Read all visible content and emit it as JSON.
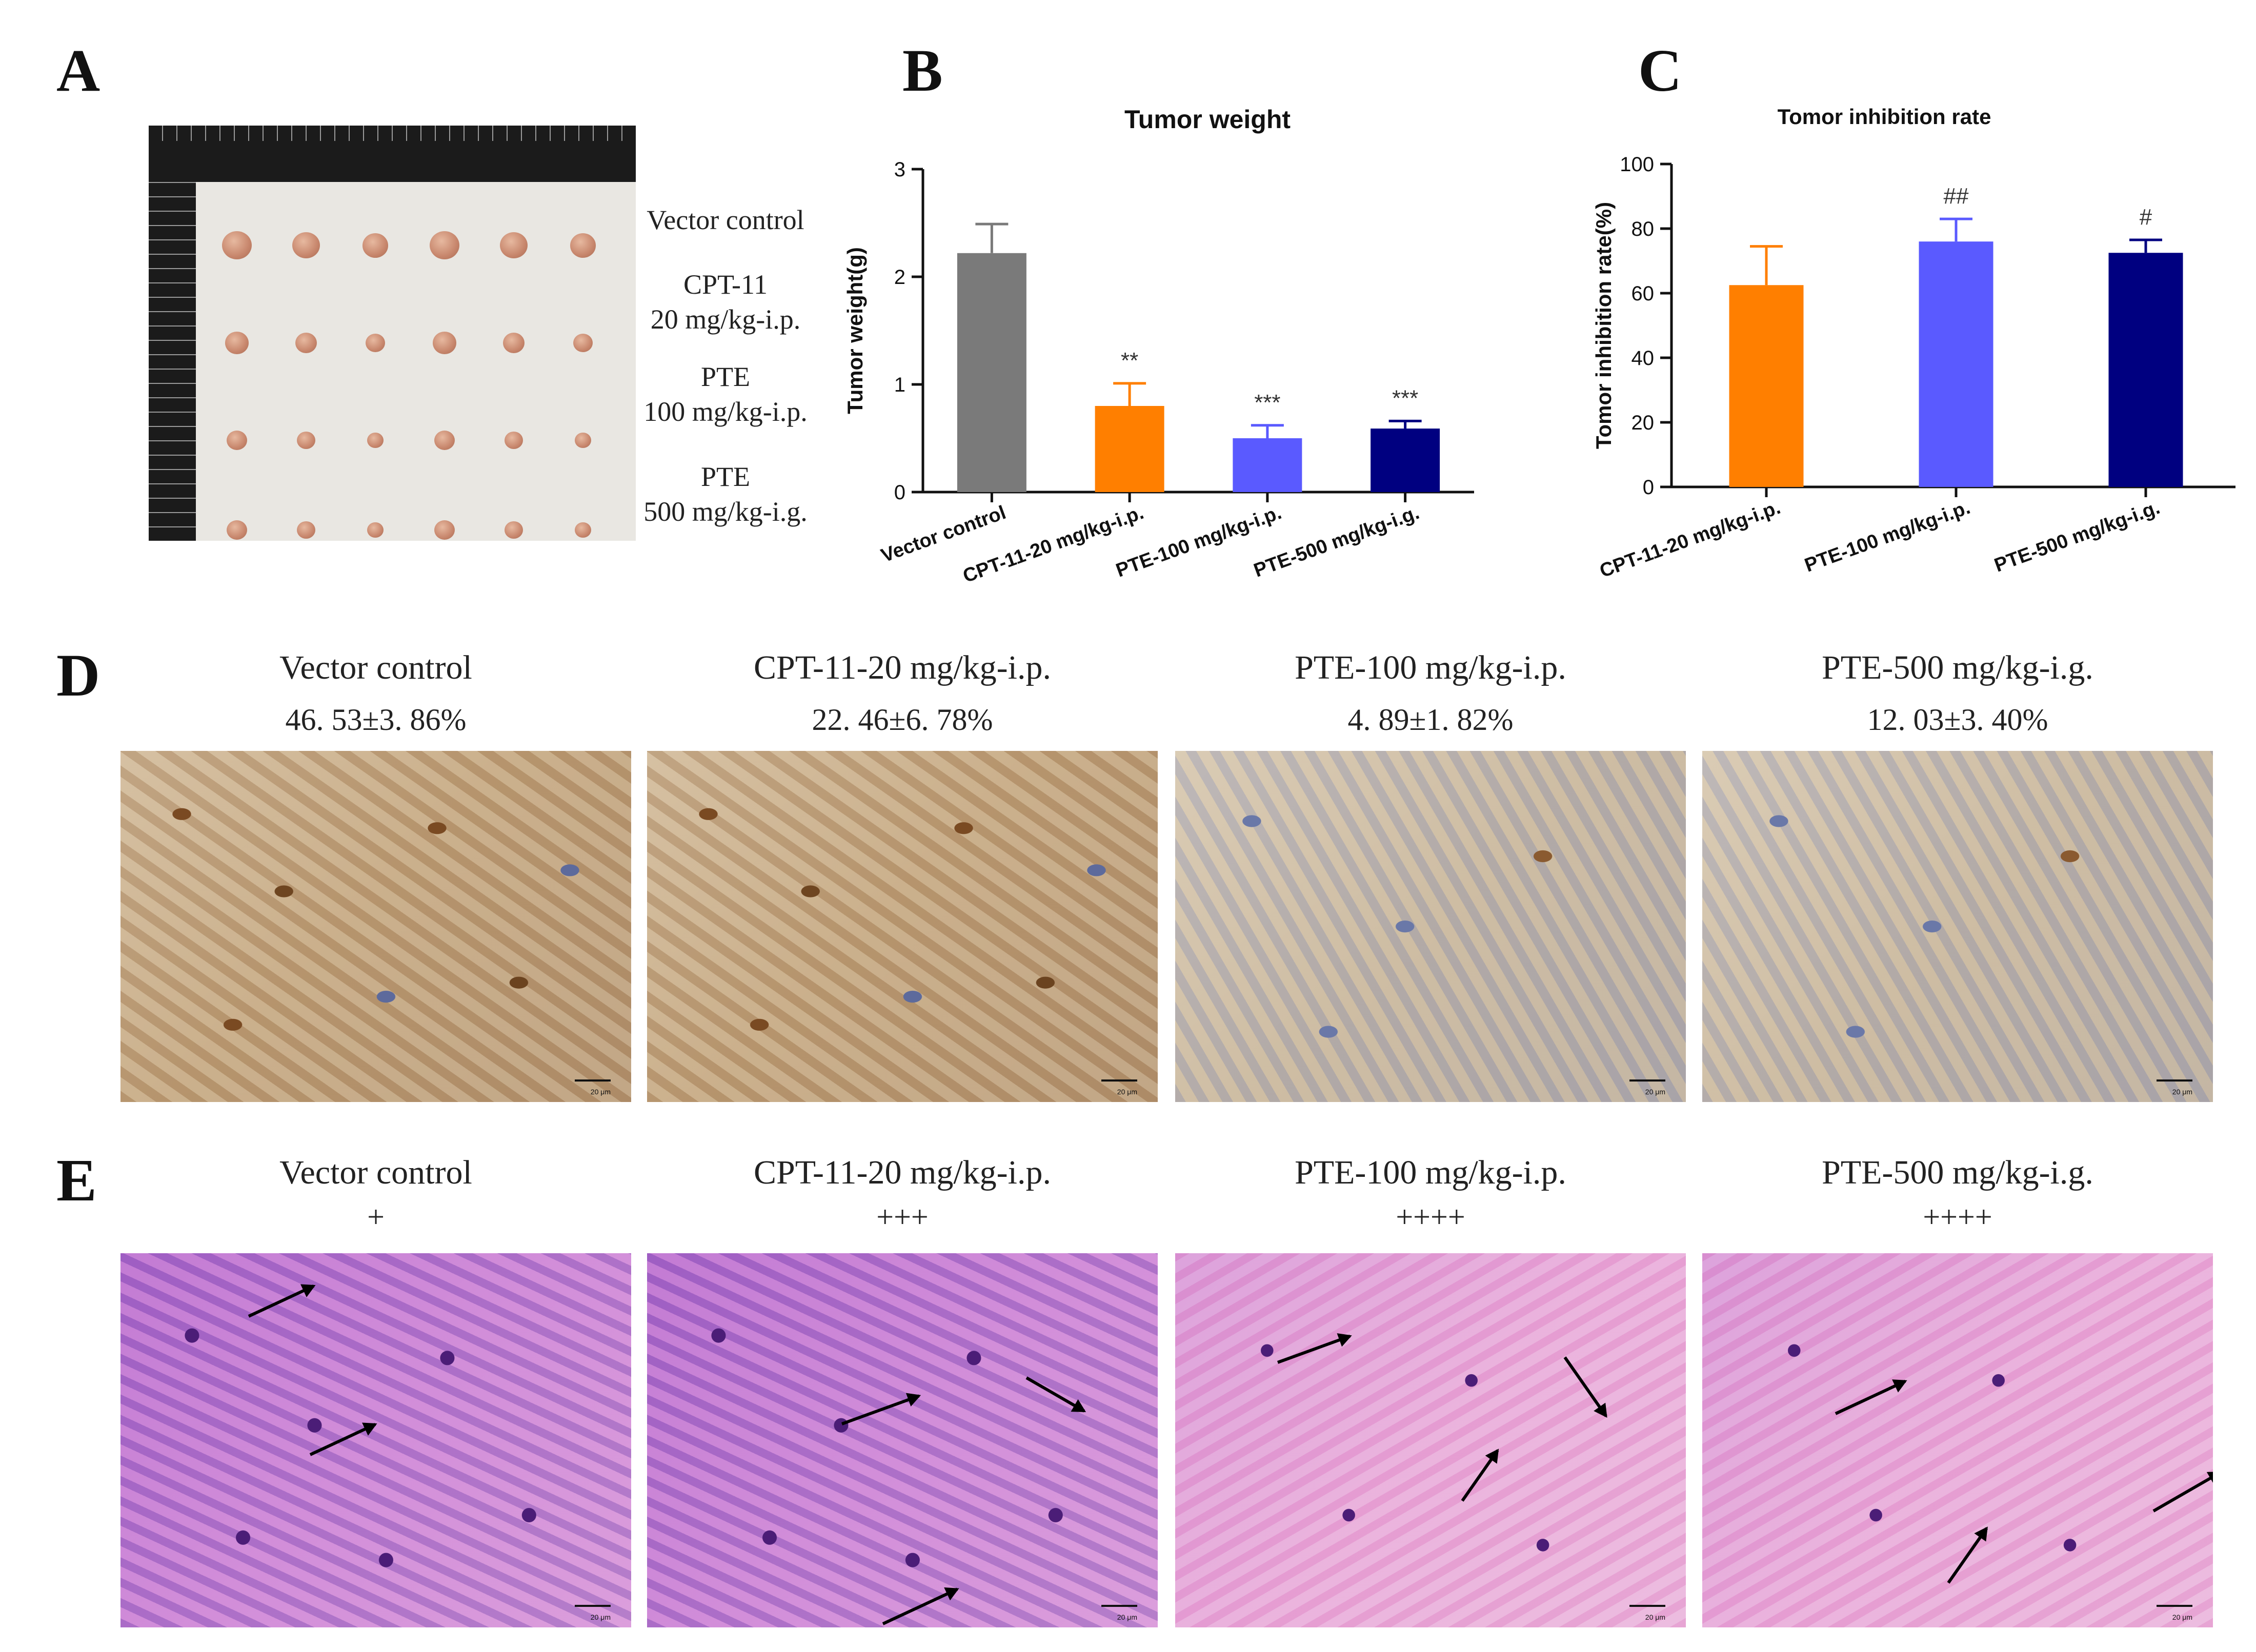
{
  "panel_letters": {
    "A": "A",
    "B": "B",
    "C": "C",
    "D": "D",
    "E": "E"
  },
  "panelA": {
    "groups": [
      "Vector control",
      "CPT-11\n20 mg/kg-i.p.",
      "PTE\n100 mg/kg-i.p.",
      "PTE\n500 mg/kg-i.g."
    ],
    "group_lines": [
      [
        "Vector control"
      ],
      [
        "CPT-11",
        "20 mg/kg-i.p."
      ],
      [
        "PTE",
        "100 mg/kg-i.p."
      ],
      [
        "PTE",
        "500 mg/kg-i.g."
      ]
    ],
    "tumors_per_row": 6
  },
  "colors": {
    "vector_control": "#7a7a7a",
    "cpt11": "#ff7f00",
    "pte100": "#5a5aff",
    "pte500": "#000080"
  },
  "chart_data": [
    {
      "type": "bar",
      "title": "Tumor weight",
      "ylabel": "Tumor weight(g)",
      "xlabel": "",
      "categories": [
        "Vector control",
        "CPT-11-20 mg/kg-i.p.",
        "PTE-100 mg/kg-i.p.",
        "PTE-500 mg/kg-i.g."
      ],
      "values": [
        2.22,
        0.8,
        0.5,
        0.59
      ],
      "errors": [
        0.27,
        0.21,
        0.12,
        0.07
      ],
      "annotations": [
        "",
        "**",
        "***",
        "***"
      ],
      "colors": [
        "#7a7a7a",
        "#ff7f00",
        "#5a5aff",
        "#000080"
      ],
      "ylim": [
        0,
        3
      ],
      "yticks": [
        0,
        1,
        2,
        3
      ]
    },
    {
      "type": "bar",
      "title": "Tomor inhibition rate",
      "ylabel": "Tomor inhibition rate(%)",
      "xlabel": "",
      "categories": [
        "CPT-11-20 mg/kg-i.p.",
        "PTE-100 mg/kg-i.p.",
        "PTE-500 mg/kg-i.g."
      ],
      "values": [
        62.5,
        76,
        72.5
      ],
      "errors": [
        12,
        7,
        4
      ],
      "annotations": [
        "",
        "##",
        "#"
      ],
      "colors": [
        "#ff7f00",
        "#5a5aff",
        "#000080"
      ],
      "ylim": [
        0,
        100
      ],
      "yticks": [
        0,
        20,
        40,
        60,
        80,
        100
      ]
    }
  ],
  "panelD": {
    "images": [
      {
        "title": "Vector control",
        "value": "46. 53±3. 86%",
        "scale": "20 μm"
      },
      {
        "title": "CPT-11-20 mg/kg-i.p.",
        "value": "22. 46±6. 78%",
        "scale": "20 μm"
      },
      {
        "title": "PTE-100 mg/kg-i.p.",
        "value": "4. 89±1. 82%",
        "scale": "20 μm"
      },
      {
        "title": "PTE-500 mg/kg-i.g.",
        "value": "12. 03±3. 40%",
        "scale": "20 μm"
      }
    ]
  },
  "panelE": {
    "images": [
      {
        "title": "Vector control",
        "grade": "+",
        "scale": "20 μm"
      },
      {
        "title": "CPT-11-20 mg/kg-i.p.",
        "grade": "+++",
        "scale": "20 μm"
      },
      {
        "title": "PTE-100 mg/kg-i.p.",
        "grade": "++++",
        "scale": "20 μm"
      },
      {
        "title": "PTE-500 mg/kg-i.g.",
        "grade": "++++",
        "scale": "20 μm"
      }
    ]
  }
}
